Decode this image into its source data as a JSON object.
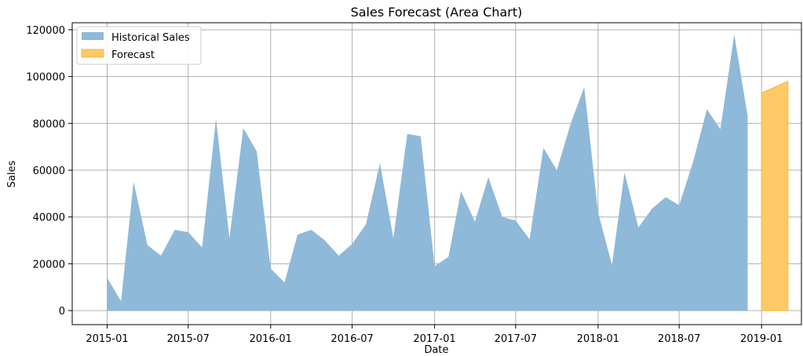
{
  "chart_data": {
    "type": "area",
    "title": "Sales Forecast (Area Chart)",
    "xlabel": "Date",
    "ylabel": "Sales",
    "ylim": [
      -6000,
      123000
    ],
    "xlim": [
      "2014-10-15",
      "2019-03-31"
    ],
    "grid": true,
    "legend_position": "top-left",
    "x_ticks": [
      "2015-01",
      "2015-07",
      "2016-01",
      "2016-07",
      "2017-01",
      "2017-07",
      "2018-01",
      "2018-07",
      "2019-01"
    ],
    "y_ticks": [
      0,
      20000,
      40000,
      60000,
      80000,
      100000,
      120000
    ],
    "series": [
      {
        "name": "Historical Sales",
        "color": "#8fb9d9",
        "x": [
          "2015-01",
          "2015-02",
          "2015-03",
          "2015-04",
          "2015-05",
          "2015-06",
          "2015-07",
          "2015-08",
          "2015-09",
          "2015-10",
          "2015-11",
          "2015-12",
          "2016-01",
          "2016-02",
          "2016-03",
          "2016-04",
          "2016-05",
          "2016-06",
          "2016-07",
          "2016-08",
          "2016-09",
          "2016-10",
          "2016-11",
          "2016-12",
          "2017-01",
          "2017-02",
          "2017-03",
          "2017-04",
          "2017-05",
          "2017-06",
          "2017-07",
          "2017-08",
          "2017-09",
          "2017-10",
          "2017-11",
          "2017-12",
          "2018-01",
          "2018-02",
          "2018-03",
          "2018-04",
          "2018-05",
          "2018-06",
          "2018-07",
          "2018-08",
          "2018-09",
          "2018-10",
          "2018-11",
          "2018-12"
        ],
        "values": [
          14000,
          4000,
          55000,
          28000,
          23500,
          34500,
          33500,
          27000,
          82000,
          31000,
          78000,
          68000,
          18000,
          12000,
          32500,
          34500,
          30000,
          23500,
          28500,
          37000,
          63000,
          31000,
          75500,
          74500,
          19000,
          23000,
          51000,
          38000,
          57000,
          40000,
          38500,
          30500,
          69500,
          60000,
          80000,
          95500,
          42000,
          19500,
          59000,
          35500,
          43500,
          48500,
          45000,
          63500,
          86000,
          77500,
          118000,
          83000
        ]
      },
      {
        "name": "Forecast",
        "color": "#ffc966",
        "x": [
          "2019-01",
          "2019-03"
        ],
        "values": [
          93000,
          98000
        ]
      }
    ]
  }
}
